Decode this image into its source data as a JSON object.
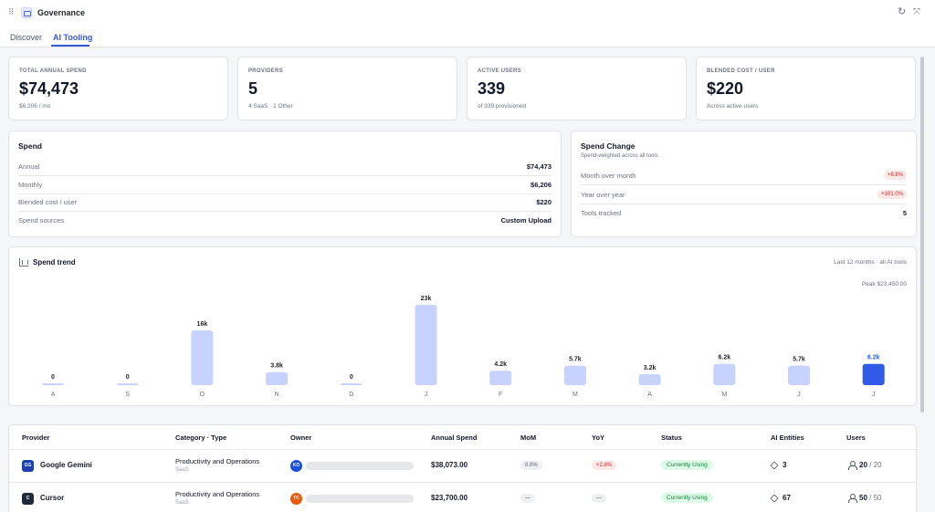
{
  "app": {
    "title": "Governance"
  },
  "tabs": [
    {
      "label": "Discover"
    },
    {
      "label": "AI Tooling"
    }
  ],
  "kpis": [
    {
      "label": "TOTAL ANNUAL SPEND",
      "value": "$74,473",
      "sub": "$6,206 / mo"
    },
    {
      "label": "PROVIDERS",
      "value": "5",
      "sub": "4 SaaS · 1 Other"
    },
    {
      "label": "ACTIVE USERS",
      "value": "339",
      "sub": "of 339 provisioned"
    },
    {
      "label": "BLENDED COST / USER",
      "value": "$220",
      "sub": "Across active users"
    }
  ],
  "spend": {
    "title": "Spend",
    "rows": [
      {
        "label": "Annual",
        "value": "$74,473"
      },
      {
        "label": "Monthly",
        "value": "$6,206"
      },
      {
        "label": "Blended cost / user",
        "value": "$220"
      },
      {
        "label": "Spend sources",
        "value": "Custom Upload"
      }
    ]
  },
  "spend_change": {
    "title": "Spend Change",
    "subtitle": "Spend-weighted across all tools",
    "rows": [
      {
        "label": "Month over month",
        "value": "+8.8%"
      },
      {
        "label": "Year over year",
        "value": "+101.0%"
      },
      {
        "label": "Tools tracked",
        "value": "5"
      }
    ]
  },
  "trend": {
    "title": "Spend trend",
    "range": "Last 12 months · all AI tools",
    "peak": "Peak $23,450.00"
  },
  "chart_data": {
    "type": "bar",
    "title": "Spend trend",
    "categories": [
      "A",
      "S",
      "O",
      "N",
      "D",
      "J",
      "F",
      "M",
      "A",
      "M",
      "J",
      "J"
    ],
    "values": [
      0,
      0,
      16000,
      3800,
      0,
      23450,
      4200,
      5700,
      3200,
      6200,
      5700,
      6200
    ],
    "data_labels": [
      "0",
      "0",
      "16k",
      "3.8k",
      "0",
      "23k",
      "4.2k",
      "5.7k",
      "3.2k",
      "6.2k",
      "5.7k",
      "6.2k"
    ],
    "highlight_index": 11,
    "ylim": [
      0,
      23450
    ],
    "grid": false,
    "colors": {
      "bar": "#c7d2fe",
      "bar_top": "#a5b4fc",
      "highlight": "#2f5be8",
      "highlight_label": "#2f5be8"
    }
  },
  "table": {
    "headers": [
      "Provider",
      "Category · Type",
      "Owner",
      "Annual Spend",
      "MoM",
      "YoY",
      "Status",
      "AI Entities",
      "Users"
    ],
    "rows": [
      {
        "icon": "GG",
        "icon_color": "#1e40af",
        "provider": "Google Gemini",
        "category": "Productivity and Operations",
        "type": "SaaS",
        "owner": "KO",
        "owner_color": "#1d4ed8",
        "spend": "$38,073.00",
        "mom": "0.0%",
        "yoy": "+2.8%",
        "status": "Currently Using",
        "entities": "3",
        "users": "20",
        "users_total": "/ 20"
      },
      {
        "icon": "C",
        "icon_color": "#1f2937",
        "provider": "Cursor",
        "category": "Productivity and Operations",
        "type": "SaaS",
        "owner": "TC",
        "owner_color": "#ea580c",
        "spend": "$23,700.00",
        "mom": "—",
        "yoy": "—",
        "status": "Currently Using",
        "entities": "67",
        "users": "50",
        "users_total": "/ 50"
      }
    ]
  }
}
